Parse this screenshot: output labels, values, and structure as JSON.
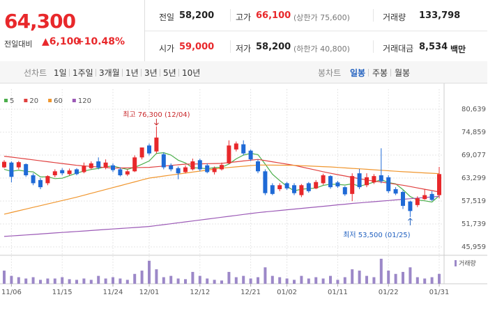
{
  "header": {
    "price": "64,300",
    "change_label": "전일대비",
    "change": "▲6,100",
    "change_rate": "+10.48%"
  },
  "stats": [
    [
      {
        "label": "전일",
        "value": "58,200"
      },
      {
        "label": "고가",
        "value": "66,100",
        "note": "(상한가 75,600)",
        "color": "#e8282b"
      },
      {
        "label": "거래량",
        "value": "133,798"
      }
    ],
    [
      {
        "label": "시가",
        "value": "59,000",
        "color": "#e8282b"
      },
      {
        "label": "저가",
        "value": "58,200",
        "note": "(하한가 40,800)"
      },
      {
        "label": "거래대금",
        "value": "8,534",
        "note": "백만"
      }
    ]
  ],
  "tabs": {
    "line_label": "선차트",
    "periods": [
      "1일",
      "1주일",
      "3개월",
      "1년",
      "3년",
      "5년",
      "10년"
    ],
    "candle_label": "봉차트",
    "candle_periods": [
      "일봉",
      "주봉",
      "월봉"
    ],
    "selected": 0
  },
  "chart_data": {
    "type": "candlestick",
    "categories": [
      null,
      "11/06",
      null,
      null,
      null,
      null,
      null,
      null,
      "11/15",
      null,
      null,
      null,
      null,
      null,
      null,
      "11/24",
      null,
      null,
      null,
      null,
      "12/01",
      null,
      null,
      null,
      null,
      null,
      null,
      "12/12",
      null,
      null,
      null,
      null,
      null,
      null,
      "12/21",
      null,
      null,
      null,
      null,
      "01/02",
      null,
      null,
      null,
      null,
      null,
      null,
      "01/11",
      null,
      null,
      null,
      null,
      null,
      null,
      "01/22",
      null,
      null,
      null,
      null,
      null,
      null,
      "01/31"
    ],
    "open": [
      66000,
      67200,
      66000,
      66800,
      64000,
      62800,
      62000,
      64000,
      65300,
      64300,
      65500,
      64800,
      65800,
      67500,
      66000,
      66500,
      65500,
      64200,
      65000,
      68500,
      71500,
      70000,
      69300,
      66500,
      65800,
      64800,
      65500,
      67800,
      66500,
      64800,
      65500,
      67000,
      70500,
      71800,
      70200,
      67500,
      65000,
      61500,
      60500,
      62000,
      61500,
      59000,
      62000,
      60700,
      62000,
      63800,
      62200,
      61000,
      59300,
      64500,
      61500,
      62200,
      64000,
      63500,
      60500,
      59800,
      57400,
      56500,
      58000,
      59300,
      59000
    ],
    "high": [
      67800,
      67500,
      67600,
      67000,
      64500,
      63300,
      64000,
      65500,
      65800,
      65700,
      65800,
      67200,
      67500,
      68500,
      68000,
      67000,
      66000,
      65500,
      69000,
      71000,
      72000,
      76300,
      69800,
      67000,
      66200,
      66500,
      68200,
      68200,
      67000,
      66200,
      67200,
      72800,
      72500,
      72800,
      70500,
      68000,
      65500,
      62000,
      62000,
      62300,
      62000,
      61800,
      62300,
      62800,
      64400,
      64000,
      62600,
      61300,
      64500,
      65600,
      64500,
      64300,
      70800,
      64000,
      61000,
      60200,
      57600,
      58700,
      60500,
      60000,
      66100
    ],
    "low": [
      65800,
      62200,
      65500,
      63600,
      61500,
      60500,
      61500,
      63500,
      64000,
      64000,
      64000,
      64500,
      65500,
      65500,
      65500,
      64800,
      63700,
      63800,
      64800,
      68000,
      69000,
      69500,
      65500,
      65000,
      63000,
      64500,
      65200,
      65000,
      64500,
      64200,
      65200,
      66800,
      70000,
      69000,
      67600,
      64500,
      59000,
      59000,
      60000,
      60300,
      59000,
      58500,
      59600,
      60500,
      61600,
      60600,
      60800,
      58800,
      57500,
      60500,
      61000,
      61800,
      62000,
      59500,
      59000,
      55500,
      53500,
      56000,
      57800,
      57500,
      58200
    ],
    "close": [
      67400,
      63600,
      67300,
      64000,
      62000,
      61000,
      63800,
      65000,
      64500,
      65200,
      64300,
      66300,
      67000,
      65900,
      67200,
      65300,
      64000,
      65000,
      68500,
      71000,
      69500,
      73500,
      66000,
      65500,
      64500,
      66000,
      67500,
      65500,
      64800,
      65800,
      66600,
      71500,
      72000,
      69500,
      68000,
      65000,
      59500,
      59300,
      61500,
      60700,
      59500,
      61500,
      60000,
      62300,
      64000,
      61000,
      61200,
      59200,
      63800,
      61000,
      63500,
      63800,
      62500,
      60000,
      59400,
      56300,
      55000,
      58200,
      59000,
      57800,
      64300
    ],
    "up_color": "#e8282b",
    "down_color": "#1f6ad6",
    "series": [
      {
        "name": "5",
        "color": "#4cae4c",
        "values": [
          65500,
          65000,
          65300,
          65000,
          64860,
          63580,
          63620,
          63160,
          63260,
          63900,
          64560,
          65060,
          65460,
          65740,
          66140,
          66340,
          65880,
          65480,
          66000,
          66760,
          67600,
          69500,
          69700,
          69100,
          67800,
          67100,
          65900,
          65800,
          65660,
          65920,
          66040,
          66840,
          68140,
          69080,
          69520,
          69200,
          66800,
          64260,
          62660,
          61200,
          60100,
          60500,
          60640,
          60800,
          61460,
          61760,
          61700,
          61540,
          61840,
          61240,
          61740,
          62260,
          62920,
          62160,
          61840,
          60400,
          58640,
          57780,
          57580,
          57260,
          58860
        ]
      },
      {
        "name": "20",
        "color": "#e0403f",
        "values": [
          68800,
          68570,
          68340,
          68110,
          67880,
          67650,
          67420,
          67190,
          66960,
          66730,
          66500,
          66360,
          66220,
          66080,
          65940,
          65800,
          65840,
          65880,
          65920,
          65960,
          66000,
          66160,
          66320,
          66480,
          66640,
          66800,
          66840,
          66880,
          66920,
          66960,
          67000,
          67200,
          67400,
          67600,
          67800,
          68000,
          67700,
          67400,
          67100,
          66800,
          66500,
          66100,
          65700,
          65300,
          64900,
          64500,
          64160,
          63820,
          63480,
          63140,
          62800,
          62540,
          62280,
          62020,
          61760,
          61500,
          61160,
          60820,
          60480,
          60140,
          59800
        ]
      },
      {
        "name": "60",
        "color": "#f0962e",
        "values": [
          54200,
          54630,
          55060,
          55490,
          55920,
          56350,
          56780,
          57210,
          57640,
          58070,
          58500,
          58980,
          59460,
          59940,
          60420,
          60900,
          61380,
          61860,
          62340,
          62820,
          63300,
          63550,
          63800,
          64050,
          64300,
          64550,
          64800,
          65050,
          65300,
          65550,
          65800,
          65960,
          66120,
          66280,
          66440,
          66600,
          66580,
          66560,
          66540,
          66520,
          66500,
          66420,
          66340,
          66260,
          66180,
          66100,
          65980,
          65860,
          65740,
          65620,
          65500,
          65380,
          65260,
          65140,
          65020,
          64900,
          64800,
          64700,
          64600,
          64500,
          64400
        ]
      },
      {
        "name": "120",
        "color": "#9b59b6",
        "values": [
          48600,
          48725,
          48850,
          48975,
          49100,
          49225,
          49350,
          49475,
          49600,
          49725,
          49850,
          49975,
          50100,
          50225,
          50350,
          50475,
          50600,
          50725,
          50850,
          50975,
          51100,
          51330,
          51570,
          51800,
          52030,
          52270,
          52500,
          52730,
          52970,
          53200,
          53430,
          53670,
          53900,
          54130,
          54370,
          54600,
          54780,
          54950,
          55130,
          55310,
          55480,
          55660,
          55840,
          56020,
          56190,
          56370,
          56550,
          56720,
          56900,
          57050,
          57200,
          57350,
          57500,
          57650,
          57800,
          57950,
          58100,
          58250,
          58400,
          58550,
          58700
        ]
      }
    ],
    "volume_name": "거래량",
    "volume_color": "#9c88c8",
    "volume": [
      178000,
      106800,
      89000,
      71200,
      89000,
      53400,
      71200,
      71200,
      89000,
      62300,
      53400,
      71200,
      53400,
      106800,
      71200,
      89000,
      71200,
      53400,
      133500,
      178000,
      311500,
      195800,
      89000,
      106800,
      71200,
      62300,
      160200,
      106800,
      71200,
      53400,
      44500,
      160200,
      89000,
      106800,
      71200,
      89000,
      222500,
      106800,
      89000,
      71200,
      53400,
      106800,
      71200,
      89000,
      71200,
      106800,
      53400,
      89000,
      195800,
      178000,
      106800,
      89000,
      338200,
      178000,
      133500,
      160200,
      222500,
      89000,
      71200,
      89000,
      133798
    ],
    "ylim": [
      45959,
      80639
    ],
    "yticks": [
      {
        "value": 80639,
        "label": "80,639"
      },
      {
        "value": 74859,
        "label": "74,859"
      },
      {
        "value": 69077,
        "label": "69,077"
      },
      {
        "value": 63299,
        "label": "63,299"
      },
      {
        "value": 57519,
        "label": "57,519"
      },
      {
        "value": 51739,
        "label": "51,739"
      },
      {
        "value": 45959,
        "label": "45,959"
      }
    ],
    "grid": true,
    "annotations": {
      "high": "최고 76,300 (12/04)",
      "low": "최저 53,500 (01/25)"
    }
  }
}
